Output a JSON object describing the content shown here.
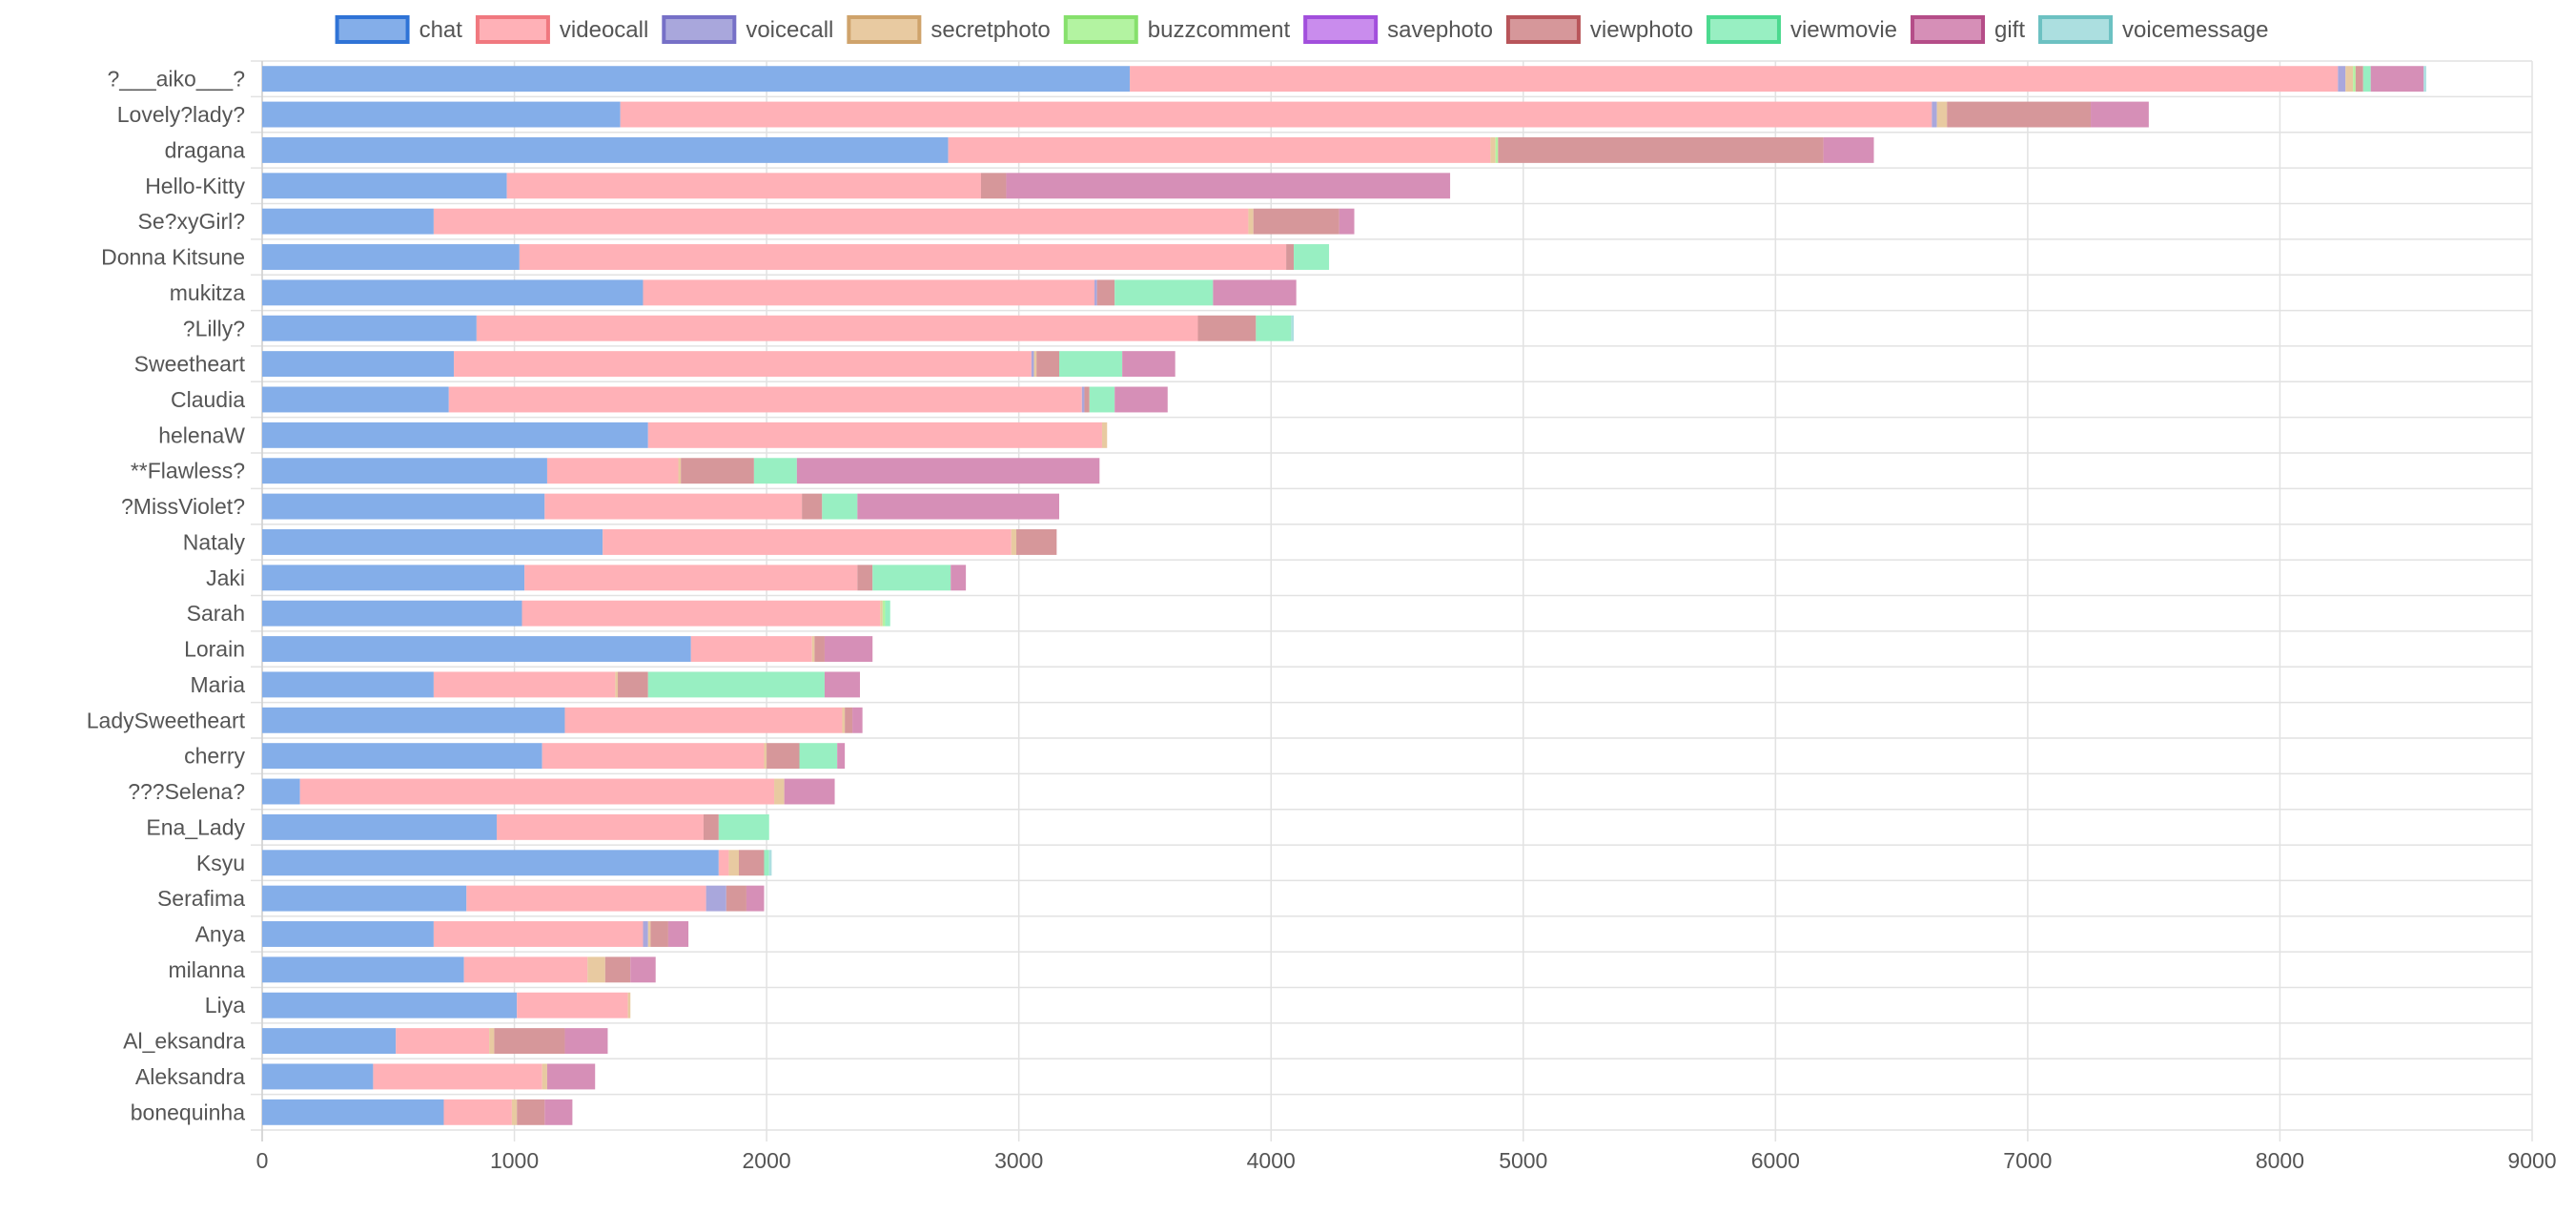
{
  "chart_data": {
    "type": "bar",
    "orientation": "horizontal",
    "stacked": true,
    "title": "",
    "xlabel": "",
    "ylabel": "",
    "xlim": [
      0,
      9000
    ],
    "x_ticks": [
      0,
      1000,
      2000,
      3000,
      4000,
      5000,
      6000,
      7000,
      8000,
      9000
    ],
    "grid": true,
    "legend_position": "top",
    "categories": [
      "?___aiko___?",
      "Lovely?lady?",
      "dragana",
      "Hello-Kitty",
      "Se?xyGirl?",
      "Donna Kitsune",
      "mukitza",
      "?Lilly?",
      "Sweetheart",
      "Claudia",
      "helenaW",
      "**Flawless?",
      "?MissViolet?",
      "Nataly",
      "Jaki",
      "Sarah",
      "Lorain",
      "Maria",
      "LadySweetheart",
      "cherry",
      "???Selena?",
      "Ena_Lady",
      "Ksyu",
      "Serafima",
      "Anya",
      "milanna",
      "Liya",
      "Al_eksandra",
      "Aleksandra",
      "bonequinha"
    ],
    "series": [
      {
        "name": "chat",
        "color": "#84aee9",
        "border": "#2f73d6",
        "values": [
          3440,
          1420,
          2720,
          970,
          680,
          1020,
          1510,
          850,
          760,
          740,
          1530,
          1130,
          1120,
          1350,
          1040,
          1030,
          1700,
          680,
          1200,
          1110,
          150,
          930,
          1810,
          810,
          680,
          800,
          1010,
          530,
          440,
          720
        ]
      },
      {
        "name": "videocall",
        "color": "#ffb1b7",
        "border": "#f0787f",
        "values": [
          4790,
          5200,
          2150,
          1880,
          3230,
          3040,
          1790,
          2860,
          2290,
          2510,
          1800,
          520,
          1020,
          1620,
          1320,
          1420,
          480,
          720,
          1100,
          880,
          1880,
          820,
          40,
          950,
          830,
          490,
          440,
          370,
          670,
          270
        ]
      },
      {
        "name": "voicecall",
        "color": "#a9a7dc",
        "border": "#7670c7",
        "values": [
          30,
          20,
          0,
          0,
          0,
          0,
          10,
          0,
          10,
          10,
          0,
          0,
          0,
          0,
          0,
          0,
          0,
          0,
          0,
          0,
          0,
          0,
          0,
          80,
          20,
          0,
          0,
          0,
          0,
          0
        ]
      },
      {
        "name": "secretphoto",
        "color": "#e8caa1",
        "border": "#cfa36b",
        "values": [
          30,
          40,
          20,
          0,
          20,
          0,
          0,
          0,
          10,
          0,
          20,
          10,
          0,
          20,
          0,
          10,
          10,
          10,
          10,
          10,
          40,
          0,
          40,
          0,
          10,
          70,
          10,
          20,
          20,
          20
        ]
      },
      {
        "name": "buzzcomment",
        "color": "#b3f3a1",
        "border": "#86e06c",
        "values": [
          10,
          0,
          10,
          0,
          0,
          0,
          0,
          0,
          0,
          0,
          0,
          0,
          0,
          0,
          0,
          10,
          0,
          0,
          0,
          0,
          0,
          0,
          0,
          0,
          0,
          0,
          0,
          0,
          0,
          0
        ]
      },
      {
        "name": "savephoto",
        "color": "#c98ced",
        "border": "#a24fdc",
        "values": [
          0,
          0,
          0,
          0,
          0,
          0,
          0,
          0,
          0,
          0,
          0,
          0,
          0,
          0,
          0,
          0,
          0,
          0,
          0,
          0,
          0,
          0,
          0,
          0,
          0,
          0,
          0,
          0,
          0,
          0
        ]
      },
      {
        "name": "viewphoto",
        "color": "#d6979a",
        "border": "#b8555a",
        "values": [
          30,
          570,
          1290,
          100,
          340,
          30,
          70,
          230,
          90,
          20,
          0,
          290,
          80,
          160,
          60,
          0,
          40,
          120,
          30,
          130,
          0,
          60,
          100,
          80,
          70,
          100,
          0,
          280,
          0,
          110
        ]
      },
      {
        "name": "viewmovie",
        "color": "#98efc2",
        "border": "#4cd98f",
        "values": [
          30,
          0,
          0,
          0,
          0,
          140,
          390,
          140,
          250,
          100,
          0,
          170,
          140,
          0,
          310,
          20,
          0,
          700,
          0,
          150,
          0,
          200,
          20,
          0,
          0,
          0,
          0,
          0,
          0,
          0
        ]
      },
      {
        "name": "gift",
        "color": "#d68fb7",
        "border": "#b54d88",
        "values": [
          210,
          230,
          200,
          1760,
          60,
          0,
          330,
          0,
          210,
          210,
          0,
          1200,
          800,
          0,
          60,
          0,
          190,
          140,
          40,
          30,
          200,
          0,
          0,
          70,
          80,
          100,
          0,
          170,
          190,
          110
        ]
      },
      {
        "name": "voicemessage",
        "color": "#acdfe0",
        "border": "#6cc1c2",
        "values": [
          10,
          0,
          0,
          0,
          0,
          0,
          0,
          10,
          0,
          0,
          0,
          0,
          0,
          0,
          0,
          0,
          0,
          0,
          0,
          0,
          0,
          0,
          10,
          0,
          0,
          0,
          0,
          0,
          0,
          0
        ]
      }
    ]
  }
}
